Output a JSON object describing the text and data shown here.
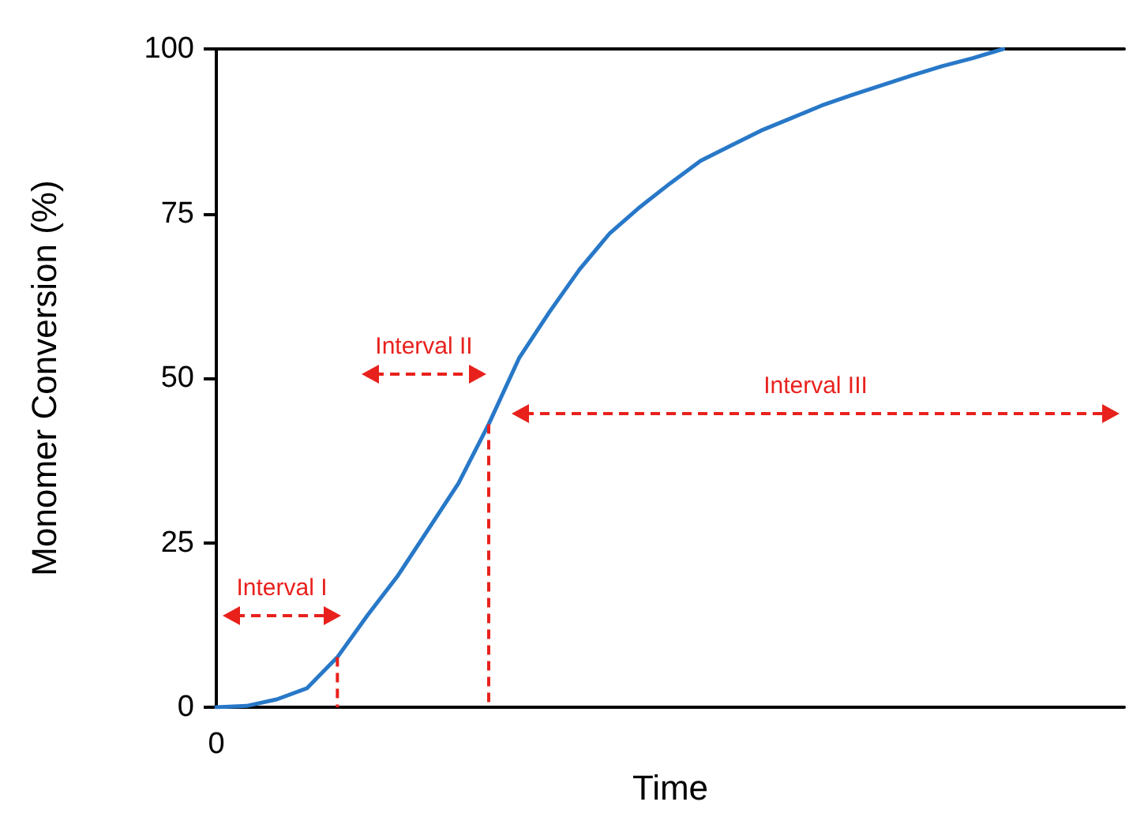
{
  "chart_data": {
    "type": "line",
    "xlabel": "Time",
    "ylabel": "Monomer Conversion (%)",
    "categories": [
      "0",
      null,
      null,
      null,
      null,
      null,
      null,
      null,
      null,
      null,
      null,
      null,
      null,
      null,
      null,
      null,
      null,
      null,
      null,
      null,
      null,
      null,
      null,
      null,
      null,
      null,
      null,
      null,
      null,
      null,
      null
    ],
    "series": [
      {
        "color": "#2878c8",
        "values": [
          0,
          0.2,
          1.2,
          2.9,
          7.6,
          14,
          20,
          27,
          34,
          43,
          53,
          60,
          66.5,
          72,
          76,
          79.6,
          83,
          85.3,
          87.6,
          89.5,
          91.4,
          93,
          94.5,
          96,
          97.4,
          98.6,
          100,
          null,
          null,
          null,
          null
        ]
      }
    ],
    "ylim": [
      0,
      100
    ],
    "yticks": [
      0,
      25,
      50,
      75,
      100
    ],
    "grid": false,
    "marker": "none",
    "line_style": "solid",
    "annotations": [
      "Interval I",
      "Interval II",
      "Interval III"
    ]
  }
}
